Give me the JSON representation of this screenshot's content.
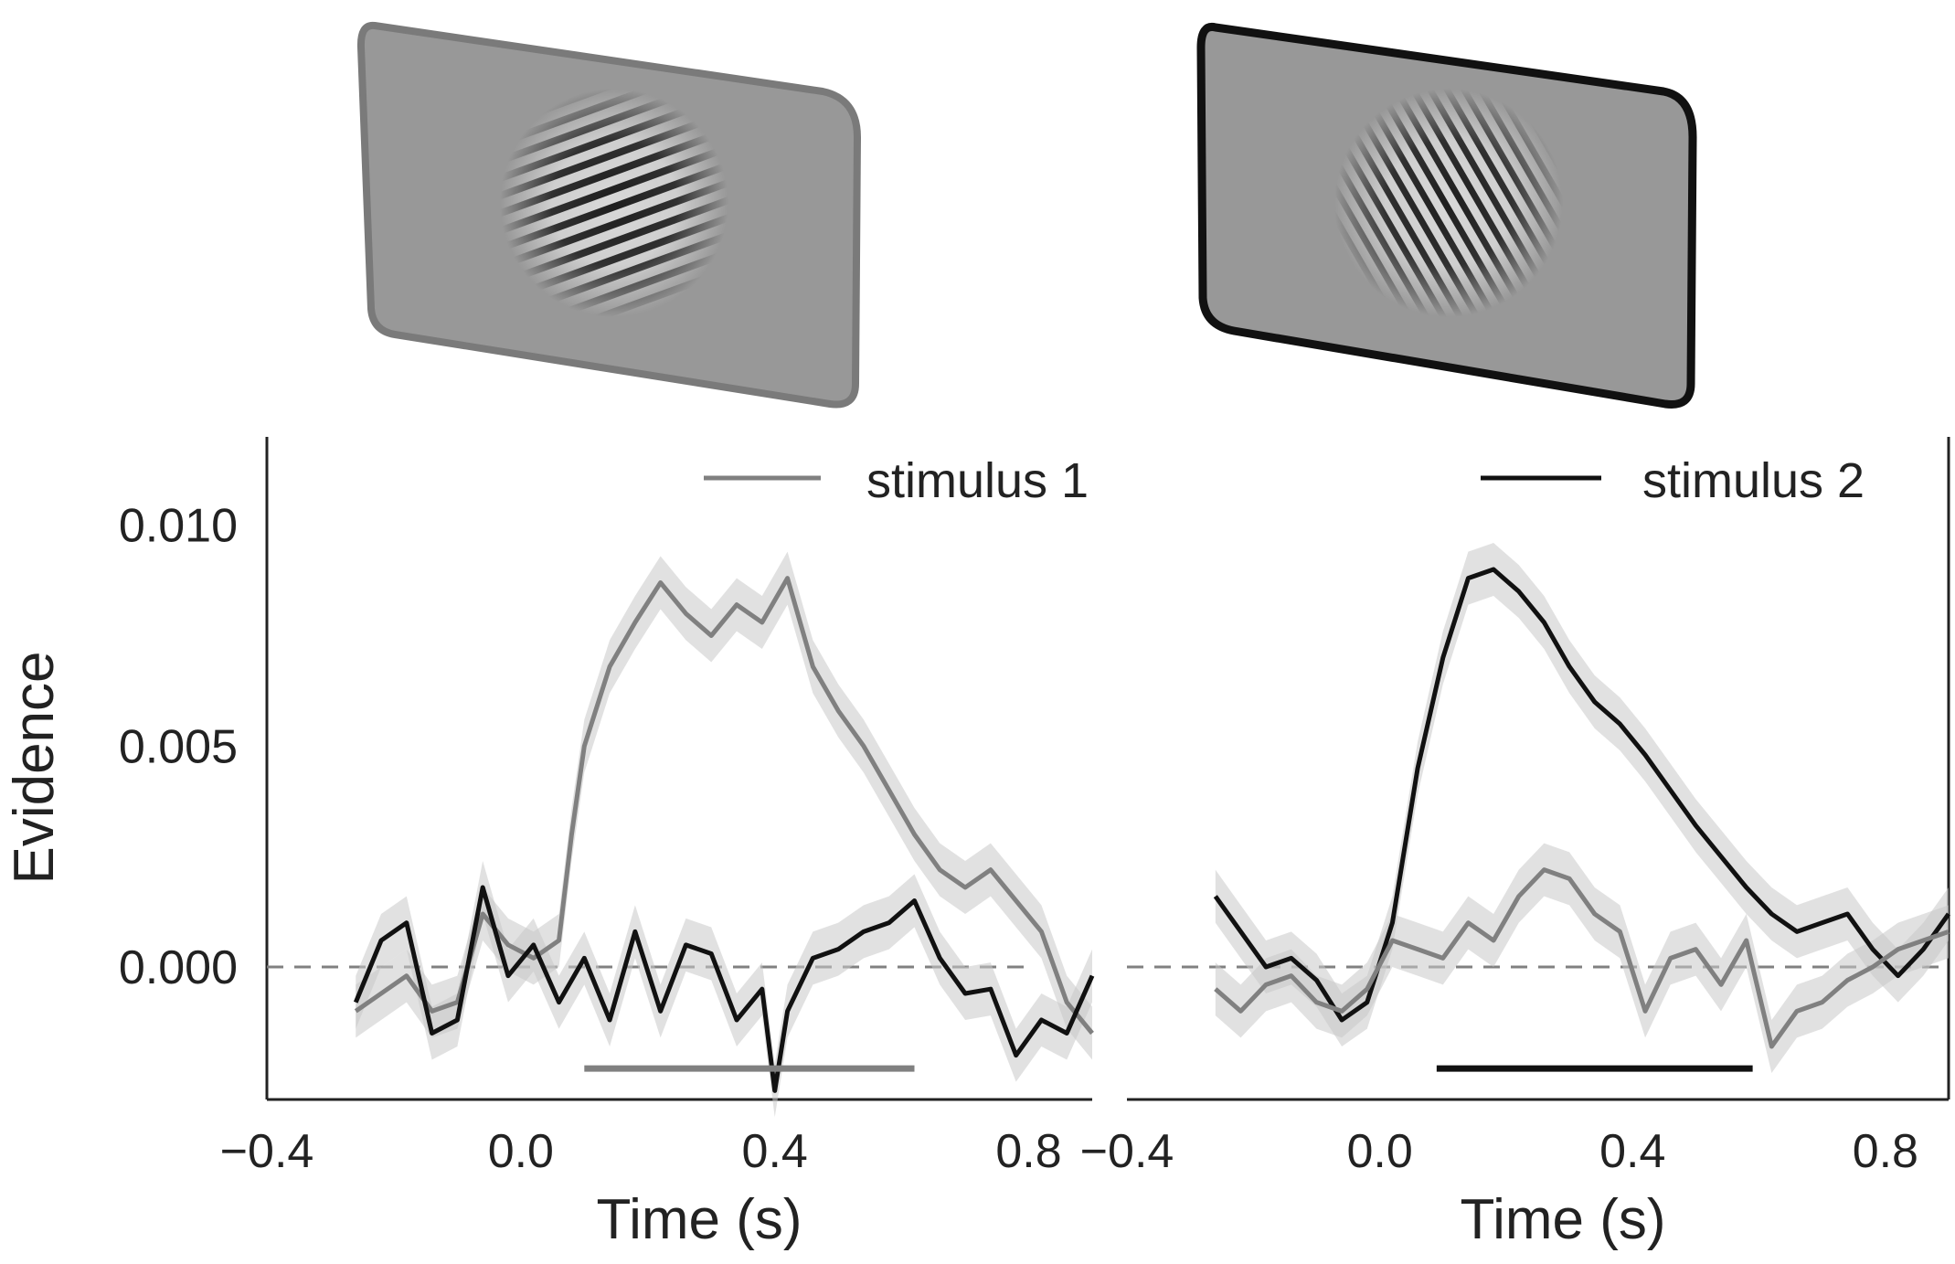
{
  "chart_data": [
    {
      "type": "line",
      "panel": "left",
      "xlabel": "Time (s)",
      "ylabel": "Evidence",
      "xlim": [
        -0.4,
        0.9
      ],
      "ylim": [
        -0.003,
        0.012
      ],
      "xticks": [
        "−0.4",
        "0.0",
        "0.4",
        "0.8"
      ],
      "xtick_values": [
        -0.4,
        0.0,
        0.4,
        0.8
      ],
      "yticks": [
        "0.000",
        "0.005",
        "0.010"
      ],
      "ytick_values": [
        0.0,
        0.005,
        0.01
      ],
      "legend": {
        "label": "stimulus 1",
        "color": "#808080",
        "placement": "top-right"
      },
      "zero_line": {
        "y": 0.0,
        "style": "dashed",
        "color": "#808080"
      },
      "significance_bar": {
        "x_start": 0.1,
        "x_end": 0.62,
        "y": -0.0023,
        "color": "#808080"
      },
      "series": [
        {
          "name": "stimulus 1",
          "color": "#808080",
          "x": [
            -0.26,
            -0.22,
            -0.18,
            -0.14,
            -0.1,
            -0.06,
            -0.02,
            0.02,
            0.06,
            0.08,
            0.1,
            0.14,
            0.18,
            0.22,
            0.26,
            0.3,
            0.34,
            0.38,
            0.42,
            0.46,
            0.5,
            0.54,
            0.58,
            0.62,
            0.66,
            0.7,
            0.74,
            0.78,
            0.82,
            0.86,
            0.9
          ],
          "y": [
            -0.001,
            -0.0006,
            -0.0002,
            -0.001,
            -0.0008,
            0.0012,
            0.0005,
            0.0002,
            0.0006,
            0.003,
            0.005,
            0.0068,
            0.0078,
            0.0087,
            0.008,
            0.0075,
            0.0082,
            0.0078,
            0.0088,
            0.0068,
            0.0058,
            0.005,
            0.004,
            0.003,
            0.0022,
            0.0018,
            0.0022,
            0.0015,
            0.0008,
            -0.0008,
            -0.0015
          ]
        },
        {
          "name": "stimulus 2",
          "color": "#111111",
          "x": [
            -0.26,
            -0.22,
            -0.18,
            -0.14,
            -0.1,
            -0.06,
            -0.02,
            0.02,
            0.06,
            0.1,
            0.14,
            0.18,
            0.22,
            0.26,
            0.3,
            0.34,
            0.38,
            0.4,
            0.42,
            0.46,
            0.5,
            0.54,
            0.58,
            0.62,
            0.66,
            0.7,
            0.74,
            0.78,
            0.82,
            0.86,
            0.9
          ],
          "y": [
            -0.0008,
            0.0006,
            0.001,
            -0.0015,
            -0.0012,
            0.0018,
            -0.0002,
            0.0005,
            -0.0008,
            0.0002,
            -0.0012,
            0.0008,
            -0.001,
            0.0005,
            0.0003,
            -0.0012,
            -0.0005,
            -0.0028,
            -0.001,
            0.0002,
            0.0004,
            0.0008,
            0.001,
            0.0015,
            0.0002,
            -0.0006,
            -0.0005,
            -0.002,
            -0.0012,
            -0.0015,
            -0.0002
          ]
        }
      ]
    },
    {
      "type": "line",
      "panel": "right",
      "xlabel": "Time (s)",
      "ylabel": "",
      "xlim": [
        -0.4,
        0.9
      ],
      "ylim": [
        -0.003,
        0.012
      ],
      "xticks": [
        "−0.4",
        "0.0",
        "0.4",
        "0.8"
      ],
      "xtick_values": [
        -0.4,
        0.0,
        0.4,
        0.8
      ],
      "legend": {
        "label": "stimulus 2",
        "color": "#111111",
        "placement": "top-right"
      },
      "zero_line": {
        "y": 0.0,
        "style": "dashed",
        "color": "#808080"
      },
      "significance_bar": {
        "x_start": 0.09,
        "x_end": 0.59,
        "y": -0.0023,
        "color": "#111111"
      },
      "series": [
        {
          "name": "stimulus 2",
          "color": "#111111",
          "x": [
            -0.26,
            -0.22,
            -0.18,
            -0.14,
            -0.1,
            -0.06,
            -0.02,
            0.02,
            0.06,
            0.1,
            0.14,
            0.18,
            0.22,
            0.26,
            0.3,
            0.34,
            0.38,
            0.42,
            0.46,
            0.5,
            0.54,
            0.58,
            0.62,
            0.66,
            0.7,
            0.74,
            0.78,
            0.82,
            0.86,
            0.9
          ],
          "y": [
            0.0016,
            0.0008,
            0.0,
            0.0002,
            -0.0003,
            -0.0012,
            -0.0008,
            0.001,
            0.0045,
            0.007,
            0.0088,
            0.009,
            0.0085,
            0.0078,
            0.0068,
            0.006,
            0.0055,
            0.0048,
            0.004,
            0.0032,
            0.0025,
            0.0018,
            0.0012,
            0.0008,
            0.001,
            0.0012,
            0.0004,
            -0.0002,
            0.0004,
            0.0012
          ]
        },
        {
          "name": "stimulus 1",
          "color": "#808080",
          "x": [
            -0.26,
            -0.22,
            -0.18,
            -0.14,
            -0.1,
            -0.06,
            -0.02,
            0.02,
            0.06,
            0.1,
            0.14,
            0.18,
            0.22,
            0.26,
            0.3,
            0.34,
            0.38,
            0.42,
            0.46,
            0.5,
            0.54,
            0.58,
            0.62,
            0.66,
            0.7,
            0.74,
            0.78,
            0.82,
            0.86,
            0.9
          ],
          "y": [
            -0.0005,
            -0.001,
            -0.0004,
            -0.0002,
            -0.0008,
            -0.001,
            -0.0005,
            0.0006,
            0.0004,
            0.0002,
            0.001,
            0.0006,
            0.0016,
            0.0022,
            0.002,
            0.0012,
            0.0008,
            -0.001,
            0.0002,
            0.0004,
            -0.0004,
            0.0006,
            -0.0018,
            -0.001,
            -0.0008,
            -0.0003,
            0.0,
            0.0004,
            0.0006,
            0.0008
          ]
        }
      ]
    }
  ]
}
